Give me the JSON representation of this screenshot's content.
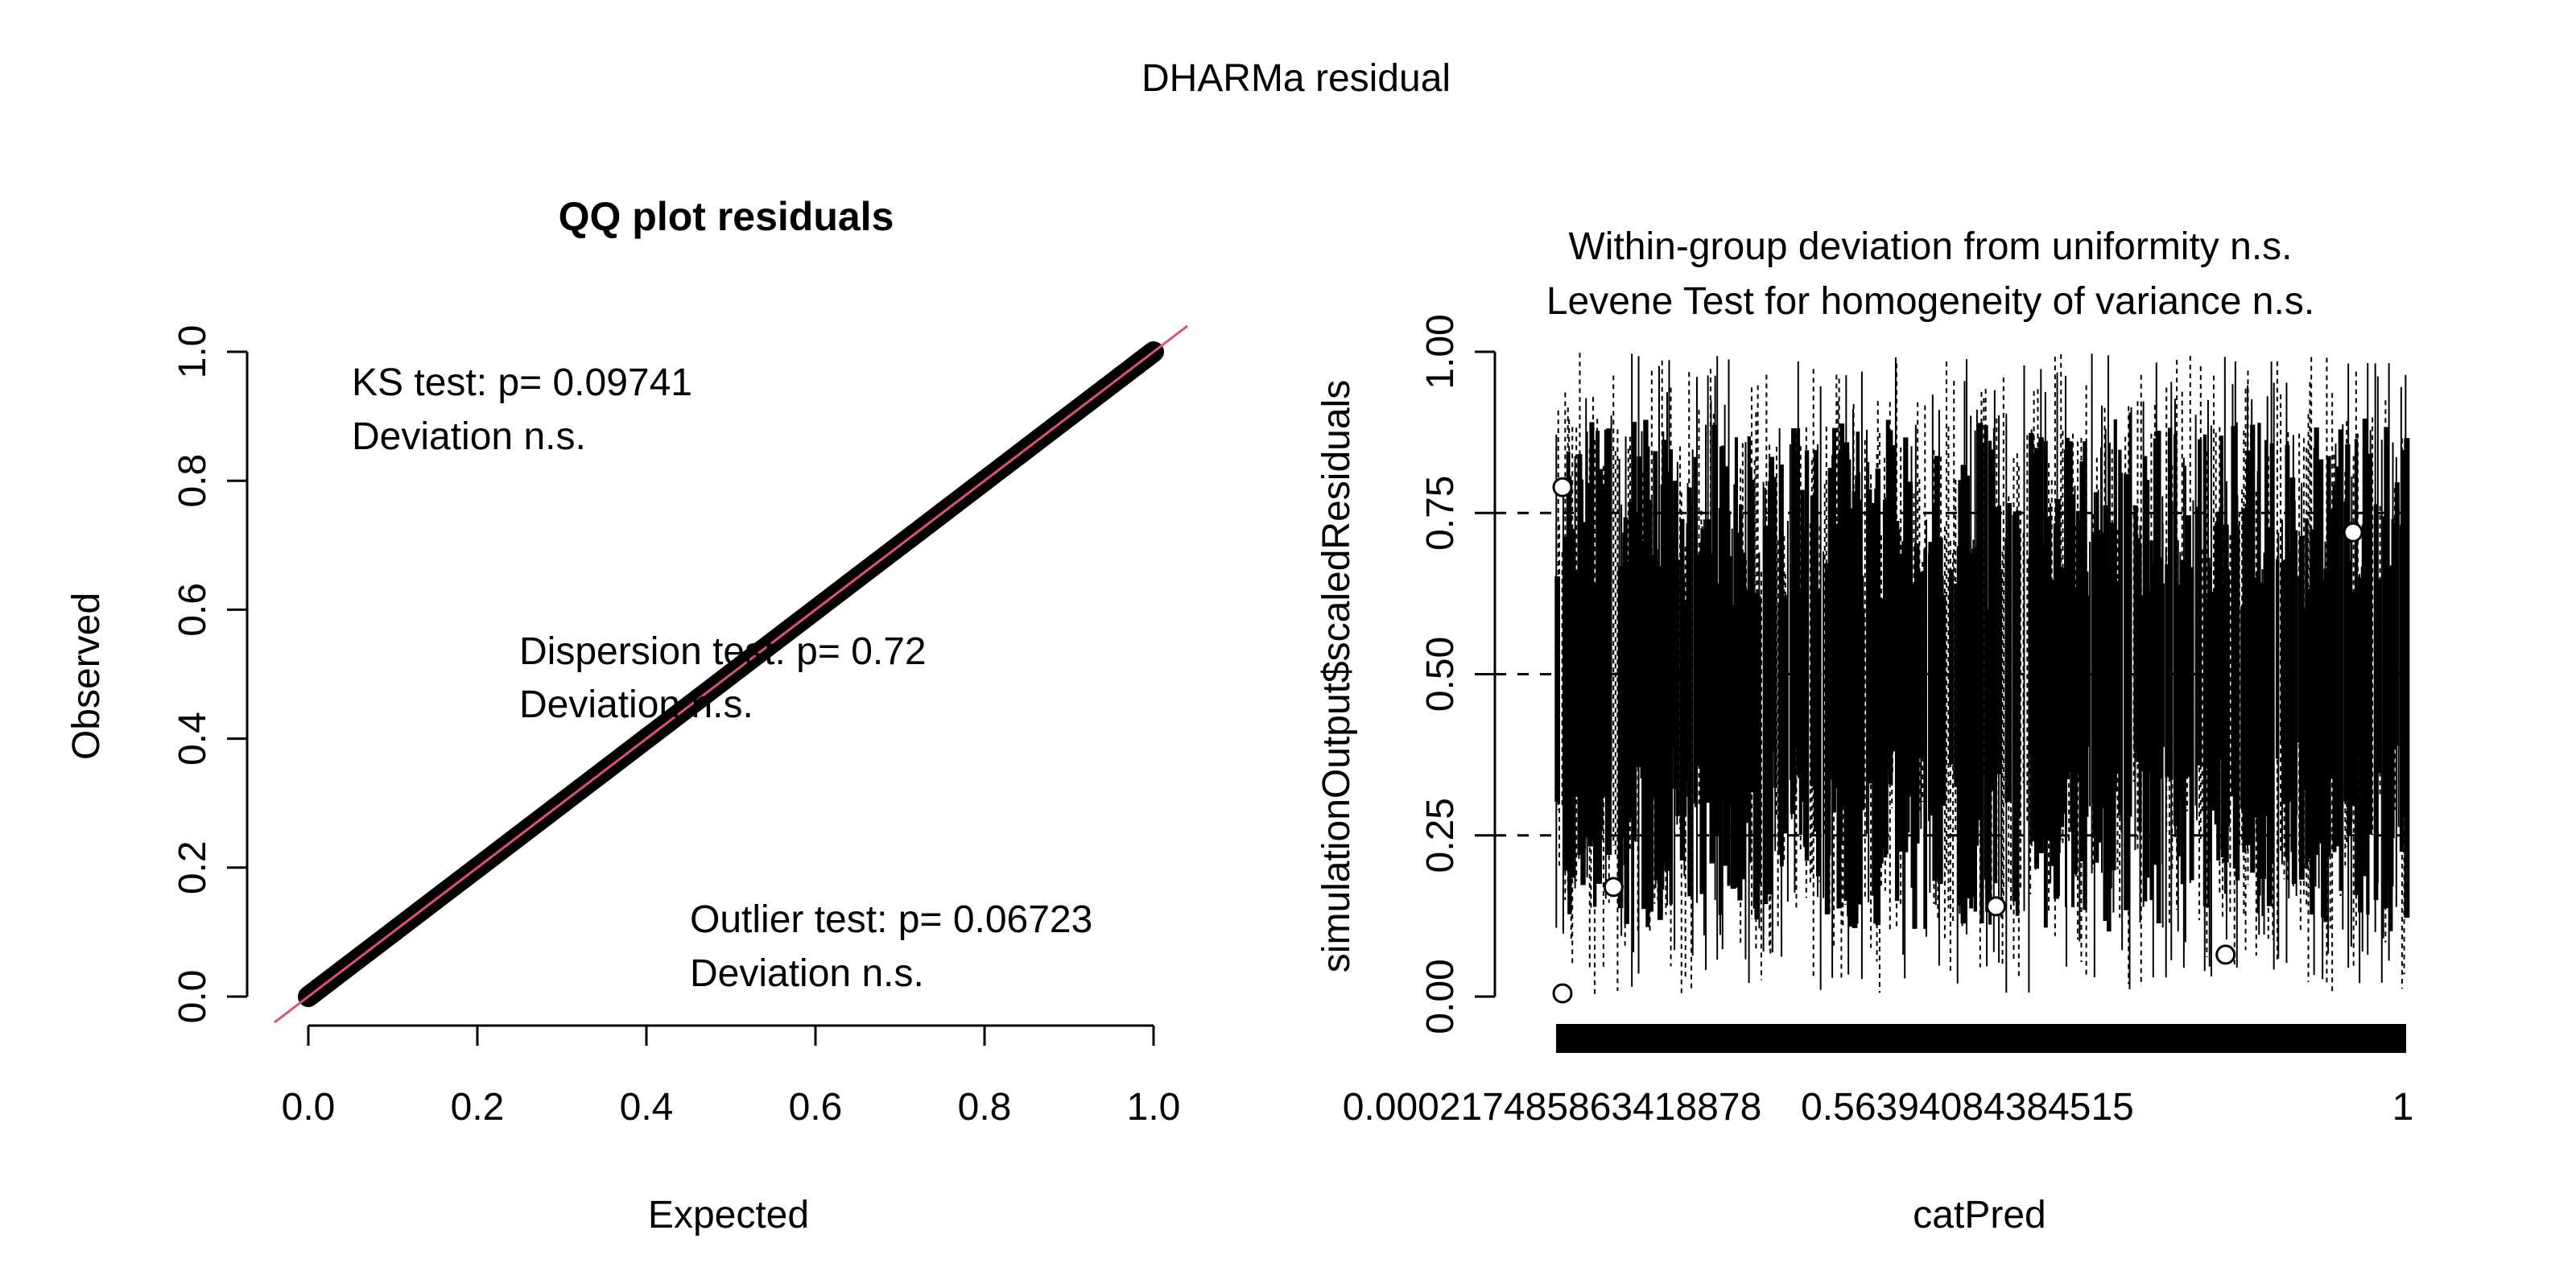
{
  "figure": {
    "title": "DHARMa residual"
  },
  "chart_data": [
    {
      "type": "scatter",
      "title": "QQ plot residuals",
      "xlabel": "Expected",
      "ylabel": "Observed",
      "xlim": [
        0,
        1
      ],
      "ylim": [
        0,
        1
      ],
      "x_ticks": [
        "0.0",
        "0.2",
        "0.4",
        "0.6",
        "0.8",
        "1.0"
      ],
      "y_ticks": [
        "0.0",
        "0.2",
        "0.4",
        "0.6",
        "0.8",
        "1.0"
      ],
      "reference_line": {
        "slope": 1,
        "intercept": 0,
        "color": "#DF536B"
      },
      "point_color": "#000000",
      "series": [
        {
          "x": [
            0.0,
            0.02,
            0.05,
            0.1,
            0.15,
            0.2,
            0.25,
            0.3,
            0.35,
            0.4,
            0.45,
            0.5,
            0.55,
            0.6,
            0.65,
            0.7,
            0.75,
            0.8,
            0.85,
            0.9,
            0.95,
            0.98,
            1.0
          ],
          "values": [
            0.0,
            0.02,
            0.05,
            0.1,
            0.15,
            0.2,
            0.25,
            0.3,
            0.35,
            0.4,
            0.45,
            0.5,
            0.55,
            0.6,
            0.65,
            0.7,
            0.75,
            0.8,
            0.85,
            0.9,
            0.95,
            0.98,
            1.0
          ]
        }
      ],
      "annotations": [
        {
          "lines": [
            "KS test: p= 0.09741",
            "Deviation  n.s."
          ]
        },
        {
          "lines": [
            "Dispersion test: p= 0.72",
            "Deviation  n.s."
          ]
        },
        {
          "lines": [
            "Outlier test: p= 0.06723",
            "Deviation  n.s."
          ]
        }
      ]
    },
    {
      "type": "box",
      "title_lines": [
        "Within-group deviation from uniformity n.s.",
        "Levene Test for homogeneity of variance n.s."
      ],
      "xlabel": "catPred",
      "ylabel": "simulationOutput$scaledResiduals",
      "ylim": [
        0,
        1
      ],
      "y_ticks": [
        "0.00",
        "0.25",
        "0.50",
        "0.75",
        "1.00"
      ],
      "x_tick_labels": [
        "0.000217485863418878",
        "0.56394084384515",
        "1"
      ],
      "reference_lines_y": [
        0.25,
        0.5,
        0.75
      ],
      "outliers": [
        {
          "group": 0.0,
          "y": 0.79
        },
        {
          "group": 0.0,
          "y": 0.005
        },
        {
          "group": 0.06,
          "y": 0.17
        },
        {
          "group": 0.51,
          "y": 0.14
        },
        {
          "group": 0.78,
          "y": 0.065
        },
        {
          "group": 0.93,
          "y": 0.72
        }
      ]
    }
  ]
}
